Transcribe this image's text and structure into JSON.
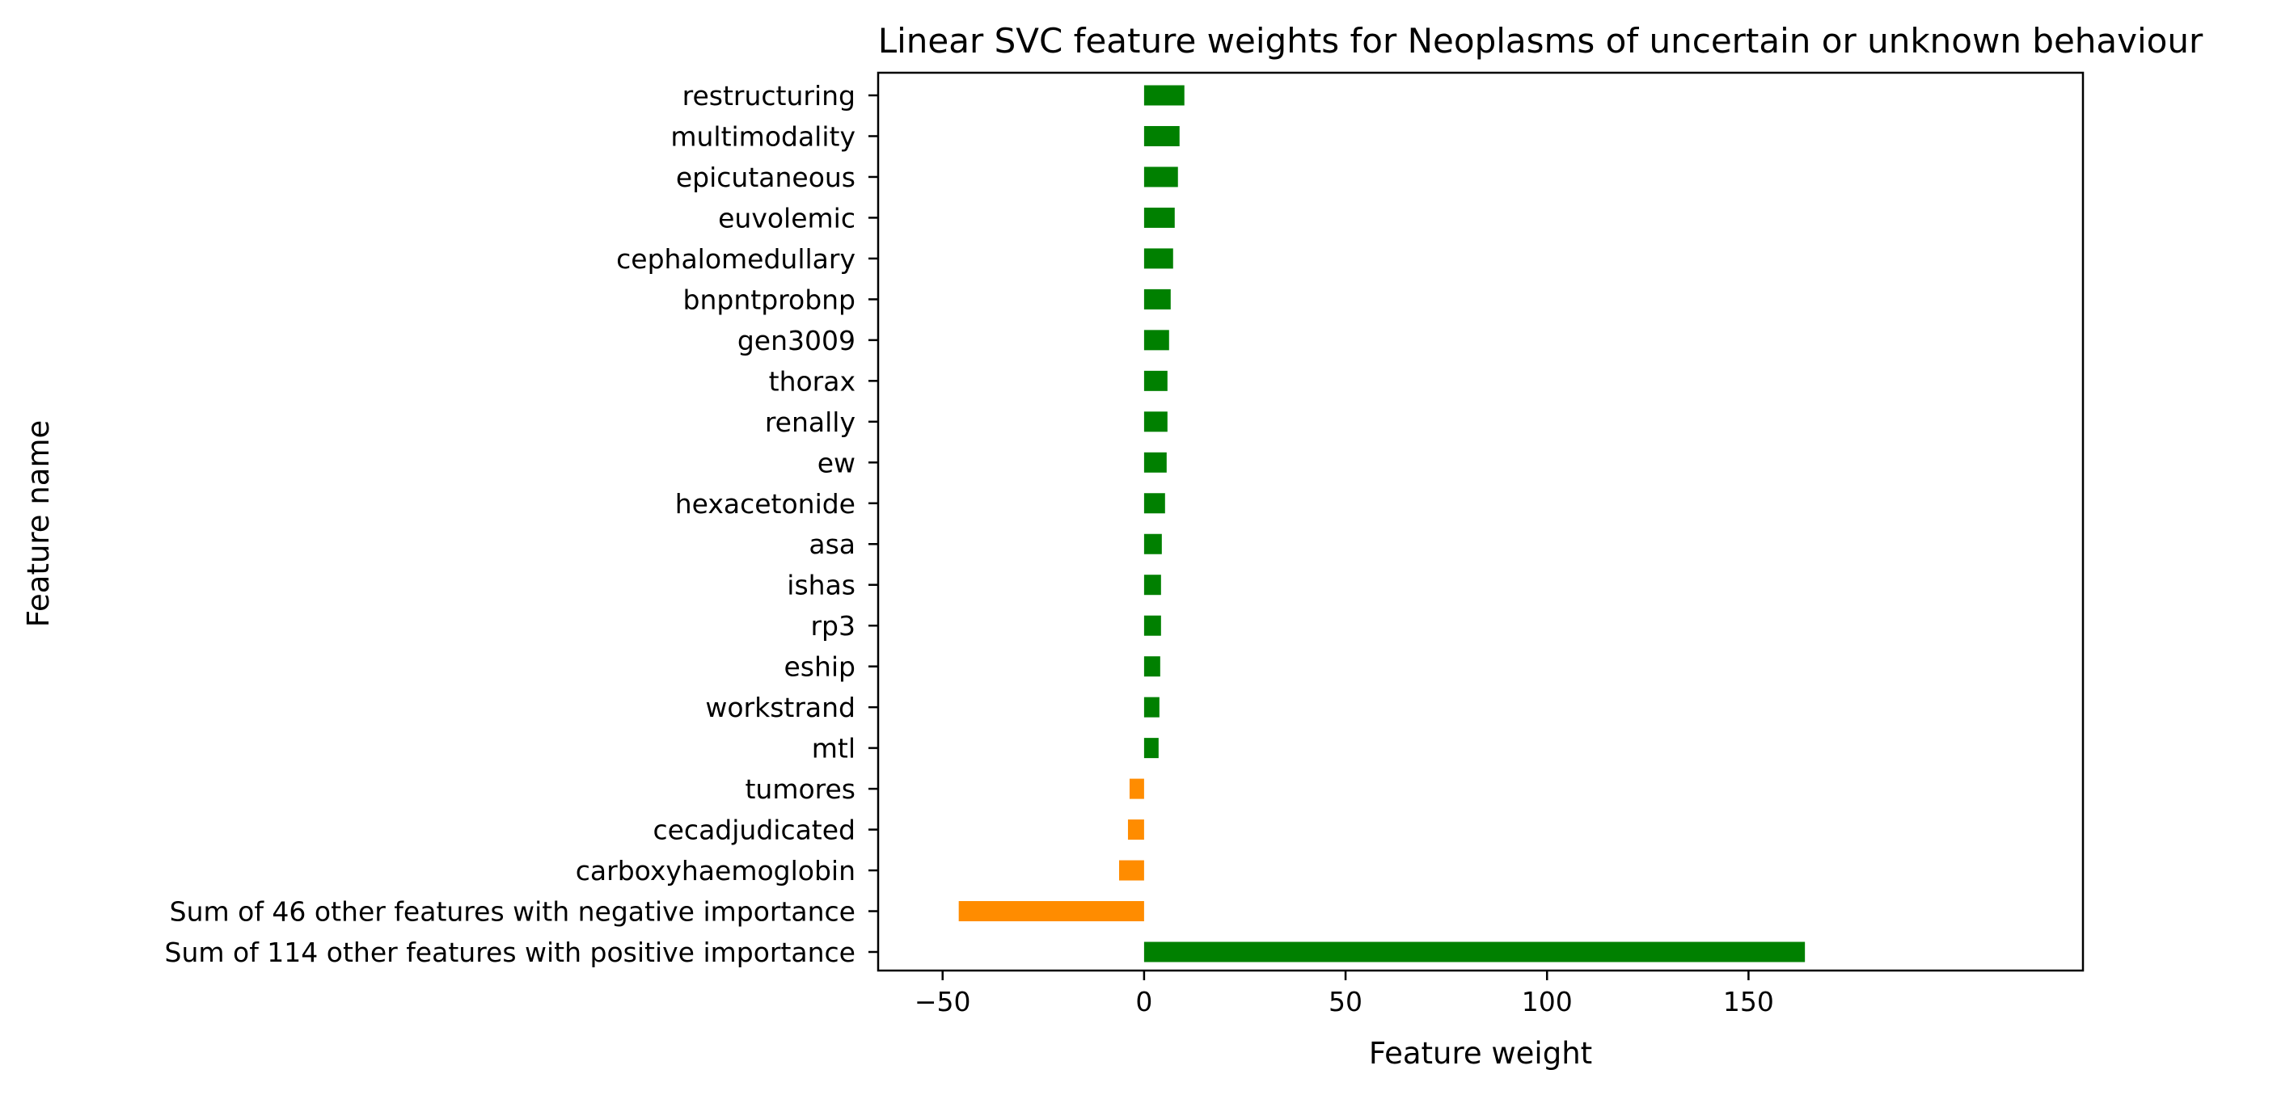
{
  "chart_data": {
    "type": "bar",
    "orientation": "horizontal",
    "title": "Linear SVC feature weights for Neoplasms of uncertain or unknown behaviour",
    "xlabel": "Feature weight",
    "ylabel": "Feature name",
    "xlim": [
      -66,
      233
    ],
    "xticks": [
      -50,
      0,
      50,
      100,
      150
    ],
    "xtick_labels": [
      "−50",
      "0",
      "50",
      "100",
      "150"
    ],
    "grid": false,
    "colors": {
      "positive": "#008000",
      "negative": "#ff8c00"
    },
    "categories": [
      "restructuring",
      "multimodality",
      "epicutaneous",
      "euvolemic",
      "cephalomedullary",
      "bnpntprobnp",
      "gen3009",
      "thorax",
      "renally",
      "ew",
      "hexacetonide",
      "asa",
      "ishas",
      "rp3",
      "eship",
      "workstrand",
      "mtl",
      "tumores",
      "cecadjudicated",
      "carboxyhaemoglobin",
      "Sum of 46 other features with negative importance",
      "Sum of 114 other features with positive importance"
    ],
    "values": [
      10.0,
      8.8,
      8.4,
      7.6,
      7.2,
      6.6,
      6.2,
      5.8,
      5.8,
      5.6,
      5.2,
      4.4,
      4.2,
      4.2,
      4.0,
      3.8,
      3.6,
      -3.6,
      -4.0,
      -6.2,
      -46.0,
      164.0
    ]
  }
}
